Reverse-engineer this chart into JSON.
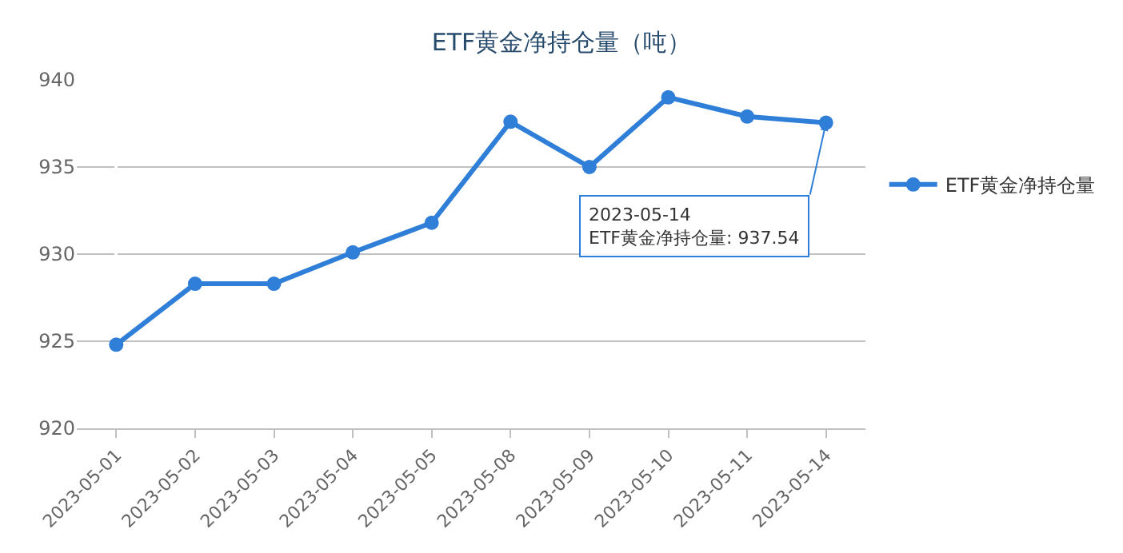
{
  "chart_data": {
    "type": "line",
    "title": "ETF黄金净持仓量（吨）",
    "categories": [
      "2023-05-01",
      "2023-05-02",
      "2023-05-03",
      "2023-05-04",
      "2023-05-05",
      "2023-05-08",
      "2023-05-09",
      "2023-05-10",
      "2023-05-11",
      "2023-05-14"
    ],
    "series": [
      {
        "name": "ETF黄金净持仓量",
        "color": "#2f7ed8",
        "values": [
          924.8,
          928.3,
          928.3,
          930.1,
          931.8,
          937.6,
          935.0,
          939.0,
          937.9,
          937.54
        ]
      }
    ],
    "ylim": [
      920,
      940
    ],
    "yticks": [
      920,
      925,
      930,
      935,
      940
    ],
    "annotations": [
      {
        "text": "2023-05-14\nETF黄金净持仓量: 937.54",
        "x": "2023-05-14",
        "y": 937.54
      }
    ],
    "grid": "y",
    "legend": "right",
    "marker": "circle",
    "line_style": "solid"
  }
}
